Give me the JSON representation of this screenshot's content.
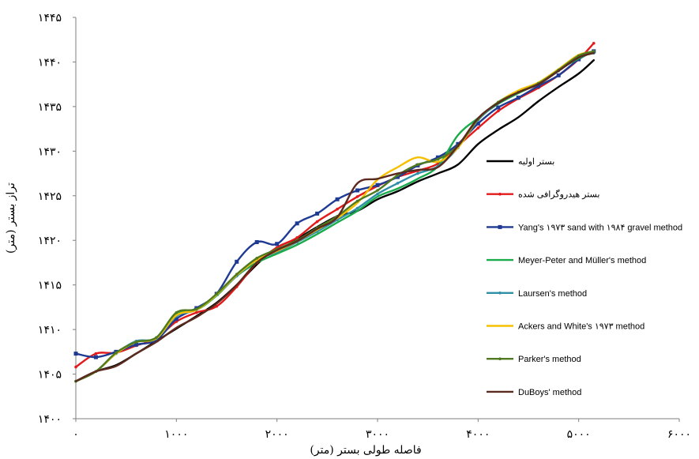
{
  "chart_data": {
    "type": "line",
    "xlabel": "فاصله طولی بستر (متر)",
    "ylabel": "تراز بستر (متر)",
    "xlim": [
      0,
      6000
    ],
    "ylim": [
      1400,
      1445
    ],
    "x_ticks": [
      {
        "value": 0,
        "label": "۰"
      },
      {
        "value": 1000,
        "label": "۱۰۰۰"
      },
      {
        "value": 2000,
        "label": "۲۰۰۰"
      },
      {
        "value": 3000,
        "label": "۳۰۰۰"
      },
      {
        "value": 4000,
        "label": "۴۰۰۰"
      },
      {
        "value": 5000,
        "label": "۵۰۰۰"
      },
      {
        "value": 6000,
        "label": "۶۰۰۰"
      }
    ],
    "y_ticks": [
      {
        "value": 1400,
        "label": "۱۴۰۰"
      },
      {
        "value": 1405,
        "label": "۱۴۰۵"
      },
      {
        "value": 1410,
        "label": "۱۴۱۰"
      },
      {
        "value": 1415,
        "label": "۱۴۱۵"
      },
      {
        "value": 1420,
        "label": "۱۴۲۰"
      },
      {
        "value": 1425,
        "label": "۱۴۲۵"
      },
      {
        "value": 1430,
        "label": "۱۴۳۰"
      },
      {
        "value": 1435,
        "label": "۱۴۳۵"
      },
      {
        "value": 1440,
        "label": "۱۴۴۰"
      },
      {
        "value": 1445,
        "label": "۱۴۴۵"
      }
    ],
    "legend_position": "right",
    "series": [
      {
        "name": "بستر اولیه",
        "color": "#000000",
        "marker": "none",
        "x": [
          0,
          200,
          400,
          600,
          800,
          1000,
          1200,
          1400,
          1600,
          1800,
          2000,
          2200,
          2400,
          2600,
          2800,
          3000,
          3200,
          3400,
          3600,
          3800,
          4000,
          4200,
          4400,
          4600,
          4800,
          5000,
          5150
        ],
        "y": [
          1404.2,
          1405.3,
          1406.0,
          1407.3,
          1408.7,
          1410.1,
          1411.5,
          1413.0,
          1415.0,
          1417.3,
          1419.2,
          1420.2,
          1421.5,
          1422.7,
          1423.3,
          1424.6,
          1425.5,
          1426.6,
          1427.5,
          1428.5,
          1430.8,
          1432.4,
          1433.8,
          1435.6,
          1437.2,
          1438.7,
          1440.2
        ]
      },
      {
        "name": "بستر هیدروگرافی شده",
        "color": "#e31a1c",
        "marker": "dot",
        "x": [
          0,
          200,
          400,
          600,
          800,
          1000,
          1200,
          1400,
          1600,
          1800,
          2000,
          2200,
          2400,
          2600,
          2800,
          3000,
          3200,
          3400,
          3600,
          3800,
          4000,
          4200,
          4400,
          4600,
          4800,
          5000,
          5150
        ],
        "y": [
          1405.8,
          1407.3,
          1407.4,
          1408.2,
          1409.0,
          1410.9,
          1411.9,
          1412.6,
          1414.8,
          1417.5,
          1419.2,
          1420.3,
          1422.1,
          1423.5,
          1424.9,
          1426.1,
          1427.1,
          1427.8,
          1428.6,
          1430.6,
          1432.6,
          1434.5,
          1435.9,
          1437.1,
          1438.5,
          1440.3,
          1442.1
        ]
      },
      {
        "name": "Yang's ۱۹۷۳ sand with ۱۹۸۴ gravel method",
        "color": "#1f3a93",
        "marker": "square",
        "x": [
          0,
          200,
          400,
          600,
          800,
          1000,
          1200,
          1400,
          1600,
          1800,
          2000,
          2200,
          2400,
          2600,
          2800,
          3000,
          3200,
          3400,
          3600,
          3800,
          4000,
          4200,
          4400,
          4600,
          4800,
          5000,
          5150
        ],
        "y": [
          1407.3,
          1406.9,
          1407.5,
          1408.3,
          1408.8,
          1411.2,
          1412.4,
          1414.0,
          1417.6,
          1419.8,
          1419.6,
          1421.9,
          1423.0,
          1424.6,
          1425.6,
          1426.2,
          1427.1,
          1428.4,
          1429.3,
          1430.8,
          1433.1,
          1434.9,
          1436.0,
          1437.3,
          1438.5,
          1440.3,
          1441.2
        ]
      },
      {
        "name": "Meyer-Peter and Müller's method",
        "color": "#1aab4b",
        "marker": "none",
        "x": [
          0,
          200,
          400,
          600,
          800,
          1000,
          1200,
          1400,
          1600,
          1800,
          2000,
          2200,
          2400,
          2600,
          2800,
          3000,
          3200,
          3400,
          3600,
          3800,
          4000,
          4200,
          4400,
          4600,
          4800,
          5000,
          5150
        ],
        "y": [
          1404.2,
          1405.3,
          1407.3,
          1408.6,
          1409.0,
          1411.8,
          1412.2,
          1413.8,
          1416.0,
          1417.5,
          1418.5,
          1419.5,
          1420.7,
          1422.0,
          1423.3,
          1424.9,
          1425.8,
          1426.9,
          1428.3,
          1431.8,
          1433.7,
          1435.3,
          1436.5,
          1437.6,
          1439.1,
          1440.4,
          1441.2
        ]
      },
      {
        "name": "Laursen's method",
        "color": "#2f8fa6",
        "marker": "dot",
        "x": [
          0,
          200,
          400,
          600,
          800,
          1000,
          1200,
          1400,
          1600,
          1800,
          2000,
          2200,
          2400,
          2600,
          2800,
          3000,
          3200,
          3400,
          3600,
          3800,
          4000,
          4200,
          4400,
          4600,
          4800,
          5000,
          5150
        ],
        "y": [
          1404.2,
          1405.3,
          1407.3,
          1408.7,
          1409.0,
          1411.5,
          1412.2,
          1413.9,
          1416.0,
          1417.8,
          1418.7,
          1419.8,
          1421.0,
          1422.3,
          1423.6,
          1425.2,
          1426.4,
          1427.5,
          1428.3,
          1430.4,
          1433.5,
          1435.4,
          1436.6,
          1437.6,
          1439.0,
          1440.6,
          1441.0
        ]
      },
      {
        "name": "Ackers and White's ۱۹۷۳ method",
        "color": "#f6c000",
        "marker": "none",
        "x": [
          0,
          200,
          400,
          600,
          800,
          1000,
          1200,
          1400,
          1600,
          1800,
          2000,
          2200,
          2400,
          2600,
          2800,
          3000,
          3200,
          3400,
          3600,
          3800,
          4000,
          4200,
          4400,
          4600,
          4800,
          5000,
          5150
        ],
        "y": [
          1404.2,
          1405.3,
          1407.3,
          1408.6,
          1409.0,
          1411.6,
          1412.2,
          1413.9,
          1416.1,
          1417.8,
          1418.8,
          1419.9,
          1421.2,
          1422.5,
          1424.2,
          1426.8,
          1428.2,
          1429.3,
          1428.8,
          1430.4,
          1433.6,
          1435.5,
          1436.8,
          1437.7,
          1439.2,
          1440.8,
          1441.1
        ]
      },
      {
        "name": "Parker's method",
        "color": "#4f7a1f",
        "marker": "dot",
        "x": [
          0,
          200,
          400,
          600,
          800,
          1000,
          1200,
          1400,
          1600,
          1800,
          2000,
          2200,
          2400,
          2600,
          2800,
          3000,
          3200,
          3400,
          3600,
          3800,
          4000,
          4200,
          4400,
          4600,
          4800,
          5000,
          5150
        ],
        "y": [
          1404.2,
          1405.3,
          1407.4,
          1408.6,
          1409.1,
          1411.9,
          1412.3,
          1414.0,
          1416.2,
          1418.0,
          1419.0,
          1420.0,
          1421.4,
          1422.7,
          1424.4,
          1425.6,
          1427.3,
          1428.5,
          1429.1,
          1430.6,
          1433.6,
          1435.5,
          1436.6,
          1437.6,
          1439.1,
          1440.7,
          1441.2
        ]
      },
      {
        "name": "DuBoys' method",
        "color": "#5b2a1e",
        "marker": "none",
        "x": [
          0,
          200,
          400,
          600,
          800,
          1000,
          1200,
          1400,
          1600,
          1800,
          2000,
          2200,
          2400,
          2600,
          2800,
          3000,
          3200,
          3400,
          3600,
          3800,
          4000,
          4200,
          4400,
          4600,
          4800,
          5000,
          5150
        ],
        "y": [
          1404.2,
          1405.3,
          1405.9,
          1407.3,
          1408.6,
          1410.2,
          1411.4,
          1412.9,
          1415.0,
          1417.5,
          1418.9,
          1419.9,
          1421.3,
          1422.6,
          1426.4,
          1426.9,
          1427.5,
          1427.9,
          1428.2,
          1430.6,
          1433.7,
          1435.4,
          1436.6,
          1437.5,
          1439.0,
          1440.5,
          1441.0
        ]
      }
    ]
  }
}
